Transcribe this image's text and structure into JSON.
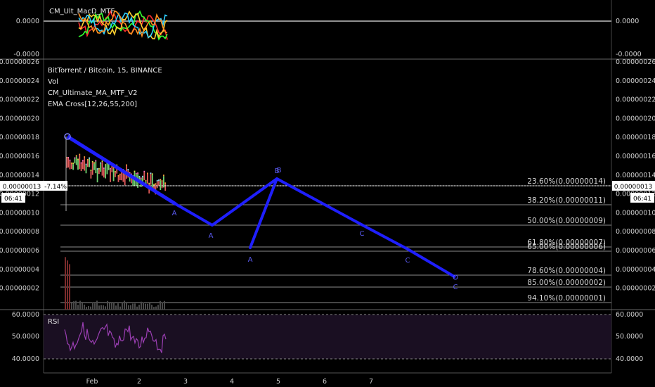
{
  "macd_panel": {
    "title": "CM_Ult_MacD_MTF",
    "ticks": [
      "0.0000",
      "-0.0000"
    ],
    "right_ticks": [
      "0.0000",
      "-0.0000"
    ]
  },
  "main_panel": {
    "symbol_title": "BitTorrent / Bitcoin, 15, BINANCE",
    "indicators": [
      "Vol",
      "CM_Ultimate_MA_MTF_V2",
      "EMA Cross[12,26,55,200]"
    ],
    "price_ticks": [
      "0.00000026",
      "0.00000024",
      "0.00000022",
      "0.00000020",
      "0.00000018",
      "0.00000016",
      "0.00000014",
      "0.00000012",
      "0.00000010",
      "0.00000008",
      "0.00000006",
      "0.00000004",
      "0.00000002"
    ],
    "current_price": "0.00000013",
    "change_pct": "-7.14%",
    "countdown": "06:41",
    "fib_levels": [
      {
        "label": "23.60%(0.00000014)"
      },
      {
        "label": "38.20%(0.00000011)"
      },
      {
        "label": "50.00%(0.00000009)"
      },
      {
        "label": "61.80%(0.00000007)"
      },
      {
        "label": "65.00%(0.00000006)"
      },
      {
        "label": "78.60%(0.00000004)"
      },
      {
        "label": "85.00%(0.00000002)"
      },
      {
        "label": "94.10%(0.00000001)"
      }
    ],
    "pattern_points": [
      "A",
      "A",
      "A",
      "B",
      "B",
      "C",
      "C",
      "C"
    ]
  },
  "rsi_panel": {
    "title": "RSI",
    "ticks": [
      "60.0000",
      "50.0000",
      "40.0000"
    ]
  },
  "time_axis": {
    "labels": [
      "Feb",
      "2",
      "3",
      "4",
      "5",
      "6",
      "7"
    ]
  },
  "colors": {
    "background": "#000000",
    "pattern_line": "#1f1fff",
    "fib_line": "#8c8c8c",
    "rsi_line": "#9c3fb4",
    "rsi_band": "#1a0f22",
    "price_tag": "#ffffff"
  }
}
